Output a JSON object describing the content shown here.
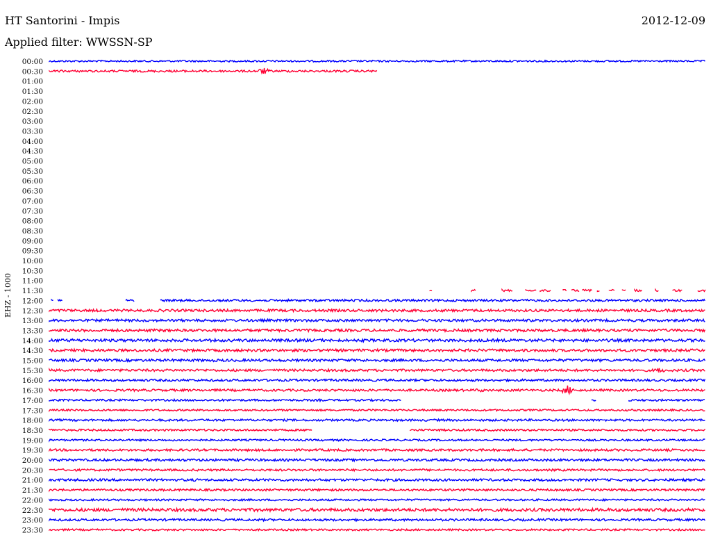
{
  "header": {
    "station": "HT Santorini - Impis",
    "filter_label": "Applied filter:",
    "filter_name": "WWSSN-SP",
    "date": "2012-12-09"
  },
  "chart_data": {
    "type": "line",
    "title": "HT Santorini - Impis",
    "channel_label": "EHZ - 1000",
    "row_labels": [
      "00:00",
      "00:30",
      "01:00",
      "01:30",
      "02:00",
      "02:30",
      "03:00",
      "03:30",
      "04:00",
      "04:30",
      "05:00",
      "05:30",
      "06:00",
      "06:30",
      "07:00",
      "07:30",
      "08:00",
      "08:30",
      "09:00",
      "09:30",
      "10:00",
      "10:30",
      "11:00",
      "11:30",
      "12:00",
      "12:30",
      "13:00",
      "13:30",
      "14:00",
      "14:30",
      "15:00",
      "15:30",
      "16:00",
      "16:30",
      "17:00",
      "17:30",
      "18:00",
      "18:30",
      "19:00",
      "19:30",
      "20:00",
      "20:30",
      "21:00",
      "21:30",
      "22:00",
      "22:30",
      "23:00",
      "23:30"
    ],
    "x_range_minutes": [
      0,
      30
    ],
    "row_colors": [
      "#0000ff",
      "#ff0033"
    ],
    "traces": [
      {
        "row": "00:00",
        "segments": [
          [
            0.0,
            30.0
          ]
        ],
        "amp": 1.2
      },
      {
        "row": "00:30",
        "segments": [
          [
            0.0,
            15.0
          ]
        ],
        "amp": 1.5,
        "events": [
          {
            "t": 9.8,
            "amp": 5
          }
        ]
      },
      {
        "row": "11:30",
        "segments": [
          [
            17.4,
            17.5
          ],
          [
            19.3,
            19.5
          ],
          [
            20.7,
            30.0
          ]
        ],
        "amp": 1.5,
        "gappy": true
      },
      {
        "row": "12:00",
        "segments": [
          [
            0.1,
            0.2
          ],
          [
            0.4,
            0.6
          ],
          [
            3.5,
            3.9
          ],
          [
            5.1,
            30.0
          ]
        ],
        "amp": 1.6
      },
      {
        "row": "12:30",
        "segments": [
          [
            0.0,
            30.0
          ]
        ],
        "amp": 1.8
      },
      {
        "row": "13:00",
        "segments": [
          [
            0.0,
            30.0
          ]
        ],
        "amp": 1.8
      },
      {
        "row": "13:30",
        "segments": [
          [
            0.0,
            30.0
          ]
        ],
        "amp": 1.9
      },
      {
        "row": "14:00",
        "segments": [
          [
            0.0,
            30.0
          ]
        ],
        "amp": 2.0
      },
      {
        "row": "14:30",
        "segments": [
          [
            0.0,
            30.0
          ]
        ],
        "amp": 1.9
      },
      {
        "row": "15:00",
        "segments": [
          [
            0.0,
            30.0
          ]
        ],
        "amp": 1.8
      },
      {
        "row": "15:30",
        "segments": [
          [
            0.0,
            30.0
          ]
        ],
        "amp": 1.7,
        "events": [
          {
            "t": 27.9,
            "amp": 4
          }
        ]
      },
      {
        "row": "16:00",
        "segments": [
          [
            0.0,
            30.0
          ]
        ],
        "amp": 1.6
      },
      {
        "row": "16:30",
        "segments": [
          [
            0.0,
            30.0
          ]
        ],
        "amp": 1.6,
        "events": [
          {
            "t": 19.7,
            "amp": 3
          },
          {
            "t": 23.7,
            "amp": 7
          }
        ]
      },
      {
        "row": "17:00",
        "segments": [
          [
            0.0,
            16.1
          ],
          [
            24.8,
            25.0
          ],
          [
            26.5,
            30.0
          ]
        ],
        "amp": 1.4,
        "events": [
          {
            "t": 12.4,
            "amp": 2
          }
        ]
      },
      {
        "row": "17:30",
        "segments": [
          [
            0.0,
            30.0
          ]
        ],
        "amp": 1.3
      },
      {
        "row": "18:00",
        "segments": [
          [
            0.0,
            30.0
          ]
        ],
        "amp": 1.5
      },
      {
        "row": "18:30",
        "segments": [
          [
            0.0,
            12.0
          ],
          [
            16.5,
            30.0
          ]
        ],
        "amp": 1.4
      },
      {
        "row": "19:00",
        "segments": [
          [
            0.0,
            30.0
          ]
        ],
        "amp": 1.3
      },
      {
        "row": "19:30",
        "segments": [
          [
            0.0,
            30.0
          ]
        ],
        "amp": 1.6
      },
      {
        "row": "20:00",
        "segments": [
          [
            0.0,
            30.0
          ]
        ],
        "amp": 1.7
      },
      {
        "row": "20:30",
        "segments": [
          [
            0.0,
            30.0
          ]
        ],
        "amp": 1.5
      },
      {
        "row": "21:00",
        "segments": [
          [
            0.0,
            30.0
          ]
        ],
        "amp": 1.7
      },
      {
        "row": "21:30",
        "segments": [
          [
            0.0,
            30.0
          ]
        ],
        "amp": 1.5
      },
      {
        "row": "22:00",
        "segments": [
          [
            0.0,
            30.0
          ]
        ],
        "amp": 1.3
      },
      {
        "row": "22:30",
        "segments": [
          [
            0.0,
            30.0
          ]
        ],
        "amp": 2.2,
        "events": [
          {
            "t": 9.5,
            "amp": 3
          }
        ]
      },
      {
        "row": "23:00",
        "segments": [
          [
            0.0,
            30.0
          ]
        ],
        "amp": 1.6
      },
      {
        "row": "23:30",
        "segments": [
          [
            0.0,
            30.0
          ]
        ],
        "amp": 1.3
      }
    ]
  }
}
